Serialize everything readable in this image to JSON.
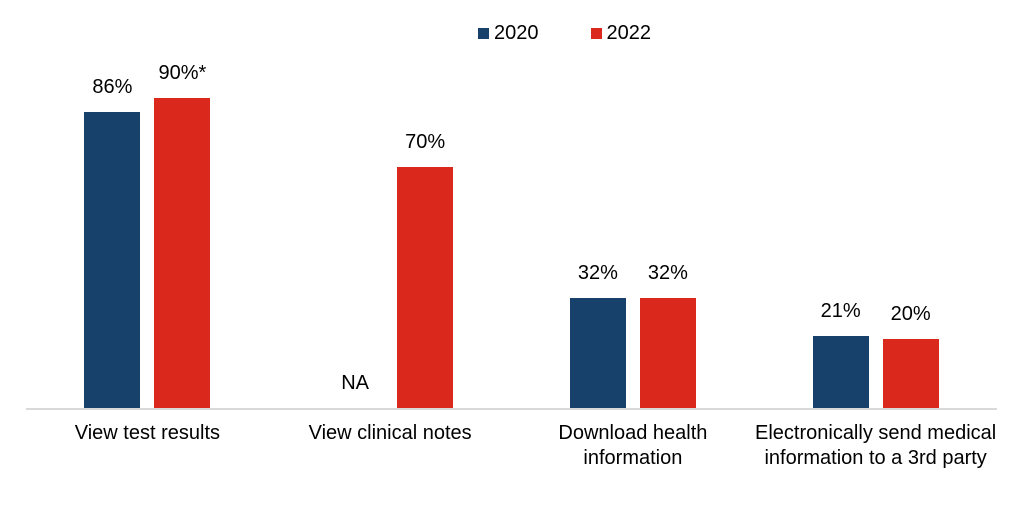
{
  "chart_data": {
    "type": "bar",
    "title": "",
    "categories": [
      "View test results",
      "View clinical notes",
      "Download health information",
      "Electronically send medical information to a 3rd party"
    ],
    "series": [
      {
        "name": "2020",
        "color": "#17406B",
        "values": [
          86,
          null,
          32,
          21
        ],
        "labels": [
          "86%",
          "NA",
          "32%",
          "21%"
        ]
      },
      {
        "name": "2022",
        "color": "#DA291C",
        "values": [
          90,
          70,
          32,
          20
        ],
        "labels": [
          "90%*",
          "70%",
          "32%",
          "20%"
        ]
      }
    ],
    "ylim": [
      0,
      100
    ],
    "grid": false,
    "legend_position": "top-center",
    "axis_line_color": "#D9D9D9",
    "background_color": "#FFFFFF",
    "text_color": "#000000"
  }
}
